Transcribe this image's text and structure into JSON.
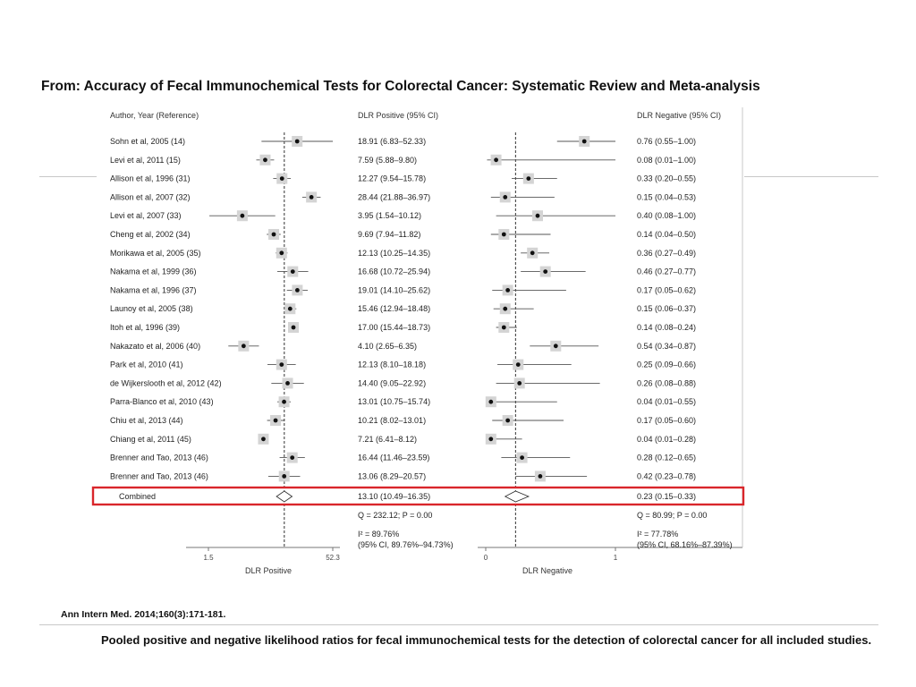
{
  "header": {
    "title": "From: Accuracy of Fecal Immunochemical Tests for Colorectal Cancer: Systematic Review and Meta-analysis"
  },
  "footer": {
    "citation": "Ann Intern Med. 2014;160(3):171-181.",
    "caption": "Pooled positive and negative likelihood ratios for fecal immunochemical tests for the detection of colorectal cancer for all included studies."
  },
  "colors": {
    "highlight_box": "#d9262b",
    "marker_box": "#d4d4d4",
    "line": "#555555"
  },
  "chart_data": {
    "type": "forest",
    "column_headers": {
      "study": "Author, Year (Reference)",
      "positive": "DLR Positive (95% CI)",
      "negative": "DLR Negative (95% CI)"
    },
    "positive_axis": {
      "label": "DLR Positive",
      "scale": "log",
      "range": [
        1.5,
        52.3
      ],
      "ticks": [
        "1.5",
        "52.3"
      ],
      "pooled": 13.1
    },
    "negative_axis": {
      "label": "DLR Negative",
      "scale": "linear",
      "range": [
        0,
        1
      ],
      "ticks": [
        "0",
        "1"
      ],
      "pooled": 0.23
    },
    "studies": [
      {
        "name": "Sohn et al, 2005 (14)",
        "pos": 18.91,
        "pos_lo": 6.83,
        "pos_hi": 52.33,
        "pos_text": "18.91 (6.83–52.33)",
        "neg": 0.76,
        "neg_lo": 0.55,
        "neg_hi": 1.0,
        "neg_text": "0.76 (0.55–1.00)"
      },
      {
        "name": "Levi et al, 2011 (15)",
        "pos": 7.59,
        "pos_lo": 5.88,
        "pos_hi": 9.8,
        "pos_text": "7.59 (5.88–9.80)",
        "neg": 0.08,
        "neg_lo": 0.01,
        "neg_hi": 1.0,
        "neg_text": "0.08 (0.01–1.00)"
      },
      {
        "name": "Allison et al, 1996 (31)",
        "pos": 12.27,
        "pos_lo": 9.54,
        "pos_hi": 15.78,
        "pos_text": "12.27 (9.54–15.78)",
        "neg": 0.33,
        "neg_lo": 0.2,
        "neg_hi": 0.55,
        "neg_text": "0.33 (0.20–0.55)"
      },
      {
        "name": "Allison et al, 2007 (32)",
        "pos": 28.44,
        "pos_lo": 21.88,
        "pos_hi": 36.97,
        "pos_text": "28.44 (21.88–36.97)",
        "neg": 0.15,
        "neg_lo": 0.04,
        "neg_hi": 0.53,
        "neg_text": "0.15 (0.04–0.53)"
      },
      {
        "name": "Levi et al, 2007 (33)",
        "pos": 3.95,
        "pos_lo": 1.54,
        "pos_hi": 10.12,
        "pos_text": "3.95 (1.54–10.12)",
        "neg": 0.4,
        "neg_lo": 0.08,
        "neg_hi": 1.0,
        "neg_text": "0.40 (0.08–1.00)"
      },
      {
        "name": "Cheng et al, 2002 (34)",
        "pos": 9.69,
        "pos_lo": 7.94,
        "pos_hi": 11.82,
        "pos_text": "9.69 (7.94–11.82)",
        "neg": 0.14,
        "neg_lo": 0.04,
        "neg_hi": 0.5,
        "neg_text": "0.14 (0.04–0.50)"
      },
      {
        "name": "Morikawa et al, 2005 (35)",
        "pos": 12.13,
        "pos_lo": 10.25,
        "pos_hi": 14.35,
        "pos_text": "12.13 (10.25–14.35)",
        "neg": 0.36,
        "neg_lo": 0.27,
        "neg_hi": 0.49,
        "neg_text": "0.36 (0.27–0.49)"
      },
      {
        "name": "Nakama et al, 1999 (36)",
        "pos": 16.68,
        "pos_lo": 10.72,
        "pos_hi": 25.94,
        "pos_text": "16.68 (10.72–25.94)",
        "neg": 0.46,
        "neg_lo": 0.27,
        "neg_hi": 0.77,
        "neg_text": "0.46 (0.27–0.77)"
      },
      {
        "name": "Nakama et al, 1996 (37)",
        "pos": 19.01,
        "pos_lo": 14.1,
        "pos_hi": 25.62,
        "pos_text": "19.01 (14.10–25.62)",
        "neg": 0.17,
        "neg_lo": 0.05,
        "neg_hi": 0.62,
        "neg_text": "0.17 (0.05–0.62)"
      },
      {
        "name": "Launoy et al, 2005 (38)",
        "pos": 15.46,
        "pos_lo": 12.94,
        "pos_hi": 18.48,
        "pos_text": "15.46 (12.94–18.48)",
        "neg": 0.15,
        "neg_lo": 0.06,
        "neg_hi": 0.37,
        "neg_text": "0.15 (0.06–0.37)"
      },
      {
        "name": "Itoh et al, 1996 (39)",
        "pos": 17.0,
        "pos_lo": 15.44,
        "pos_hi": 18.73,
        "pos_text": "17.00 (15.44–18.73)",
        "neg": 0.14,
        "neg_lo": 0.08,
        "neg_hi": 0.24,
        "neg_text": "0.14 (0.08–0.24)"
      },
      {
        "name": "Nakazato et al, 2006 (40)",
        "pos": 4.1,
        "pos_lo": 2.65,
        "pos_hi": 6.35,
        "pos_text": "4.10 (2.65–6.35)",
        "neg": 0.54,
        "neg_lo": 0.34,
        "neg_hi": 0.87,
        "neg_text": "0.54 (0.34–0.87)"
      },
      {
        "name": "Park et al, 2010 (41)",
        "pos": 12.13,
        "pos_lo": 8.1,
        "pos_hi": 18.18,
        "pos_text": "12.13 (8.10–18.18)",
        "neg": 0.25,
        "neg_lo": 0.09,
        "neg_hi": 0.66,
        "neg_text": "0.25 (0.09–0.66)"
      },
      {
        "name": "de Wijkerslooth et al, 2012 (42)",
        "pos": 14.4,
        "pos_lo": 9.05,
        "pos_hi": 22.92,
        "pos_text": "14.40 (9.05–22.92)",
        "neg": 0.26,
        "neg_lo": 0.08,
        "neg_hi": 0.88,
        "neg_text": "0.26 (0.08–0.88)"
      },
      {
        "name": "Parra-Blanco et al, 2010 (43)",
        "pos": 13.01,
        "pos_lo": 10.75,
        "pos_hi": 15.74,
        "pos_text": "13.01 (10.75–15.74)",
        "neg": 0.04,
        "neg_lo": 0.01,
        "neg_hi": 0.55,
        "neg_text": "0.04 (0.01–0.55)"
      },
      {
        "name": "Chiu et al, 2013 (44)",
        "pos": 10.21,
        "pos_lo": 8.02,
        "pos_hi": 13.01,
        "pos_text": "10.21 (8.02–13.01)",
        "neg": 0.17,
        "neg_lo": 0.05,
        "neg_hi": 0.6,
        "neg_text": "0.17 (0.05–0.60)"
      },
      {
        "name": "Chiang et al, 2011 (45)",
        "pos": 7.21,
        "pos_lo": 6.41,
        "pos_hi": 8.12,
        "pos_text": "7.21 (6.41–8.12)",
        "neg": 0.04,
        "neg_lo": 0.01,
        "neg_hi": 0.28,
        "neg_text": "0.04 (0.01–0.28)"
      },
      {
        "name": "Brenner and Tao, 2013 (46)",
        "pos": 16.44,
        "pos_lo": 11.46,
        "pos_hi": 23.59,
        "pos_text": "16.44 (11.46–23.59)",
        "neg": 0.28,
        "neg_lo": 0.12,
        "neg_hi": 0.65,
        "neg_text": "0.28 (0.12–0.65)"
      },
      {
        "name": "Brenner and Tao, 2013 (46)",
        "pos": 13.06,
        "pos_lo": 8.29,
        "pos_hi": 20.57,
        "pos_text": "13.06 (8.29–20.57)",
        "neg": 0.42,
        "neg_lo": 0.23,
        "neg_hi": 0.78,
        "neg_text": "0.42 (0.23–0.78)"
      }
    ],
    "combined": {
      "name": "Combined",
      "pos": 13.1,
      "pos_lo": 10.49,
      "pos_hi": 16.35,
      "pos_text": "13.10 (10.49–16.35)",
      "neg": 0.23,
      "neg_lo": 0.15,
      "neg_hi": 0.33,
      "neg_text": "0.23 (0.15–0.33)"
    },
    "heterogeneity": {
      "positive": {
        "q": "Q = 232.12; P = 0.00",
        "i2": "I² = 89.76%",
        "ci": "(95% CI, 89.76%–94.73%)"
      },
      "negative": {
        "q": "Q = 80.99; P = 0.00",
        "i2": "I² = 77.78%",
        "ci": "(95% CI, 68.16%–87.39%)"
      }
    }
  }
}
